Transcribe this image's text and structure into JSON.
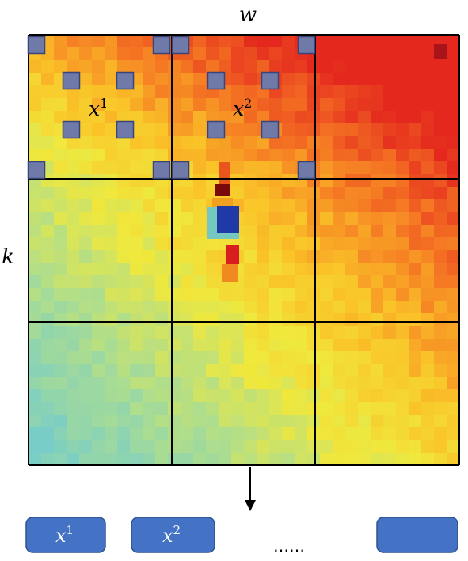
{
  "labels": {
    "width": "w",
    "height": "k"
  },
  "patches": [
    {
      "base": "x",
      "sup": "1"
    },
    {
      "base": "x",
      "sup": "2"
    }
  ],
  "sequence": [
    {
      "base": "x",
      "sup": "1"
    },
    {
      "base": "x",
      "sup": "2"
    },
    {
      "base": "",
      "sup": ""
    }
  ],
  "ellipsis": "……",
  "colors": {
    "token_fill": "#4472c4",
    "token_stroke": "#2f528f",
    "sample_fill": "#6f7aa8",
    "sample_stroke": "#38457a",
    "grid_line": "#000000",
    "heatmap_hot": "#e0301e",
    "heatmap_mid": "#f7dc2a",
    "heatmap_cool": "#8fd3b3",
    "anomaly_dark": "#1f3aa8",
    "anomaly_red": "#7a0a0a"
  }
}
